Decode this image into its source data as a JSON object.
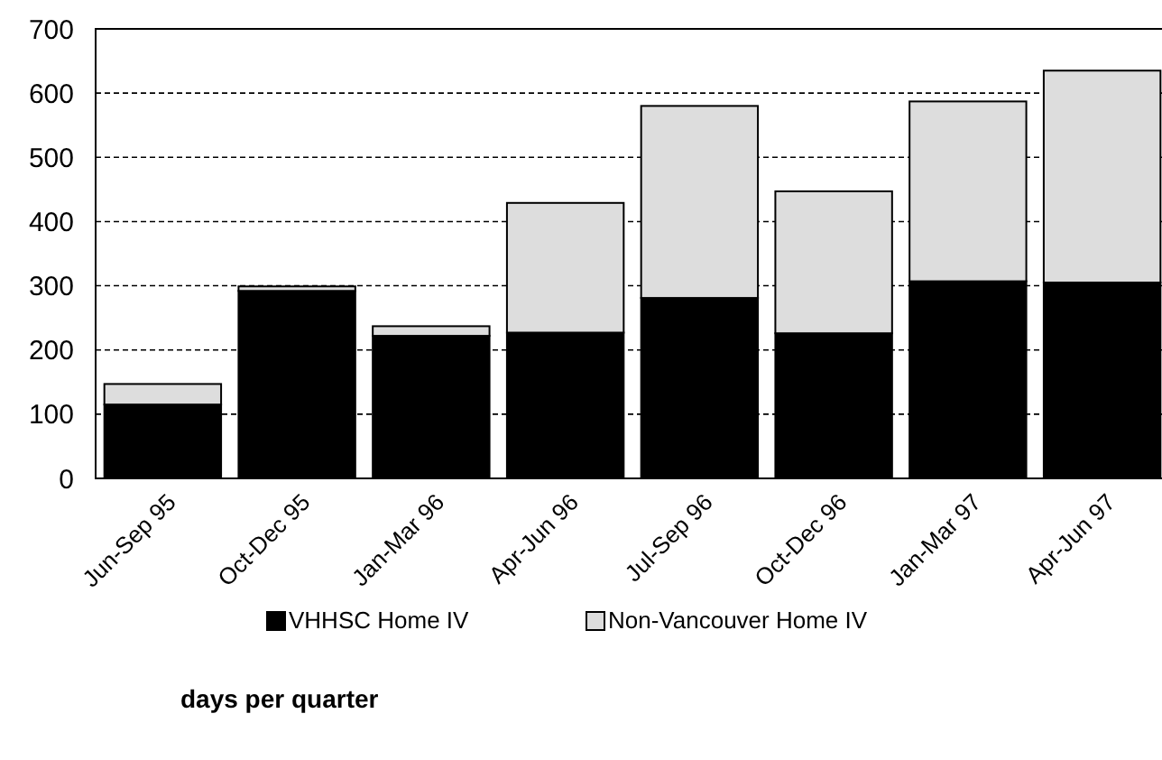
{
  "chart_data": {
    "type": "bar",
    "title": "days per quarter",
    "stacked": true,
    "categories": [
      "Jun-Sep 95",
      "Oct-Dec 95",
      "Jan-Mar 96",
      "Apr-Jun 96",
      "Jul-Sep 96",
      "Oct-Dec 96",
      "Jan-Mar 97",
      "Apr-Jun 97"
    ],
    "series": [
      {
        "name": "VHHSC Home IV",
        "color": "#000000",
        "values": [
          115,
          292,
          222,
          227,
          281,
          226,
          307,
          305
        ]
      },
      {
        "name": "Non-Vancouver Home IV",
        "color": "#dddddd",
        "values": [
          32,
          7,
          15,
          202,
          299,
          221,
          280,
          330
        ]
      }
    ],
    "ylim": [
      0,
      700
    ],
    "yticks": [
      0,
      100,
      200,
      300,
      400,
      500,
      600,
      700
    ],
    "grid": "y",
    "line_style": "dashed",
    "legend": "bottom"
  }
}
